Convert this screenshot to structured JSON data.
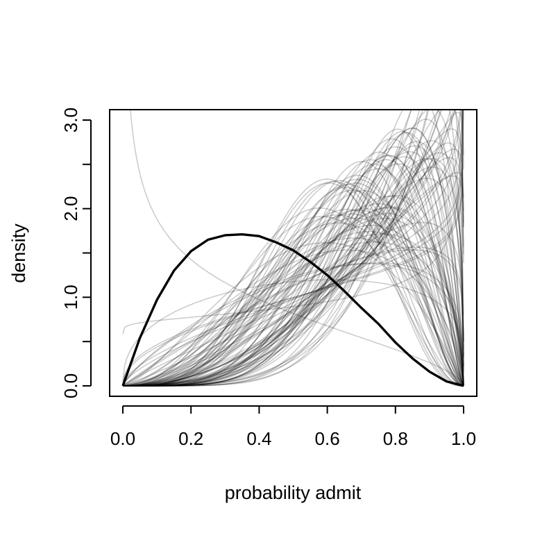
{
  "chart_data": {
    "type": "line",
    "title": "",
    "xlabel": "probability admit",
    "ylabel": "density",
    "xlim": [
      0.0,
      1.0
    ],
    "ylim": [
      0.0,
      3.0
    ],
    "x_ticks": [
      "0.0",
      "0.2",
      "0.4",
      "0.6",
      "0.8",
      "1.0"
    ],
    "y_ticks": [
      "0.0",
      "1.0",
      "2.0",
      "3.0"
    ],
    "y_minor_ticks": [
      0.5,
      1.5,
      2.5
    ],
    "grid": false,
    "legend": "none",
    "highlight_series": {
      "description_only_visual": true,
      "x": [
        0.0,
        0.05,
        0.1,
        0.15,
        0.2,
        0.25,
        0.3,
        0.35,
        0.4,
        0.45,
        0.5,
        0.55,
        0.6,
        0.65,
        0.7,
        0.75,
        0.8,
        0.85,
        0.9,
        0.95,
        1.0
      ],
      "y": [
        0.0,
        0.54,
        0.97,
        1.3,
        1.52,
        1.65,
        1.7,
        1.71,
        1.69,
        1.62,
        1.53,
        1.4,
        1.25,
        1.07,
        0.88,
        0.7,
        0.49,
        0.31,
        0.16,
        0.05,
        0.0
      ],
      "color": "#000000"
    },
    "sampled_series": {
      "count": 100,
      "shape": "beta",
      "color": "#000000",
      "opacity": 0.2
    }
  }
}
